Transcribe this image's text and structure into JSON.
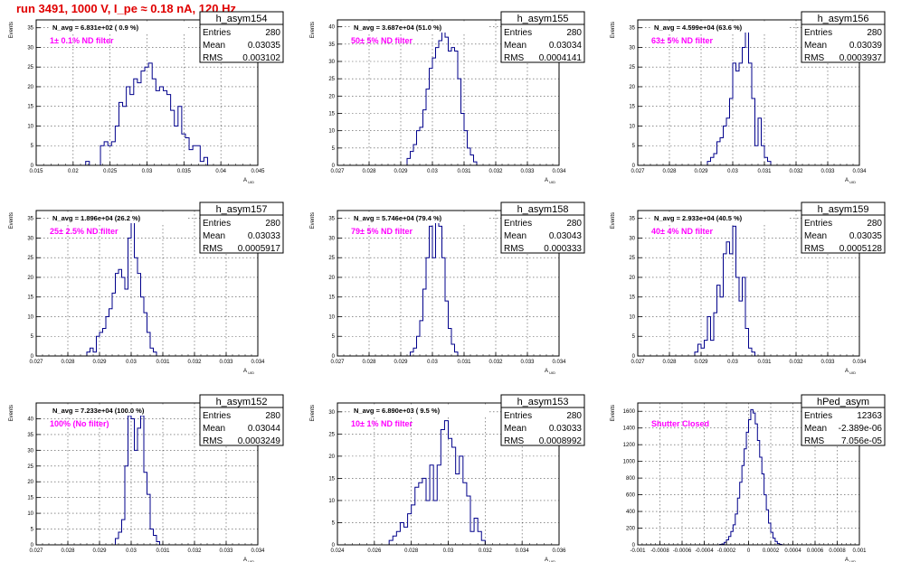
{
  "page": {
    "title": "run 3491,  1000 V, I_pe ≈ 0.18 nA, 120 Hz",
    "colors": {
      "title": "#e00000",
      "histogram": "#00008b",
      "filter_label": "#ff00ff",
      "grid": "#000000",
      "axis": "#000000"
    },
    "stats_labels": {
      "entries": "Entries",
      "mean": "Mean",
      "rms": "RMS"
    },
    "y_axis_label": "Events"
  },
  "chart_data": [
    {
      "type": "bar",
      "name": "h_asym154",
      "navg": "N_avg = 6.831e+02 ( 0.9 %)",
      "filter": "1± 0.1% ND filter",
      "stats": {
        "entries": "280",
        "mean": "0.03035",
        "rms": "0.003102"
      },
      "xlabel": "A_UID",
      "ylabel": "Events",
      "xlim": [
        0.015,
        0.045
      ],
      "ylim": [
        0,
        37
      ],
      "xticks": [
        0.015,
        0.02,
        0.025,
        0.03,
        0.035,
        0.04,
        0.045
      ],
      "xtick_labels": [
        "0.015",
        "0.02",
        "0.025",
        "0.03",
        "0.035",
        "0.04",
        "0.045"
      ],
      "yticks": [
        0,
        5,
        10,
        15,
        20,
        25,
        30,
        35
      ],
      "ytick_labels": [
        "0",
        "5",
        "10",
        "15",
        "20",
        "25",
        "30",
        "35"
      ],
      "bins": {
        "x0": 0.0217,
        "w": 0.0005,
        "values": [
          1,
          0,
          0,
          0,
          5,
          6,
          5,
          6,
          10,
          16,
          15,
          20,
          18,
          22,
          21,
          24,
          25,
          26,
          22,
          19,
          20,
          19,
          18,
          14,
          10,
          15,
          8,
          7,
          4,
          5,
          5,
          1,
          2
        ]
      }
    },
    {
      "type": "bar",
      "name": "h_asym155",
      "navg": "N_avg = 3.687e+04 (51.0 %)",
      "filter": "50± 5% ND filter",
      "stats": {
        "entries": "280",
        "mean": "0.03034",
        "rms": "0.0004141"
      },
      "xlabel": "A_UID",
      "ylabel": "Events",
      "xlim": [
        0.027,
        0.034
      ],
      "ylim": [
        0,
        42
      ],
      "xticks": [
        0.027,
        0.028,
        0.029,
        0.03,
        0.031,
        0.032,
        0.033,
        0.034
      ],
      "xtick_labels": [
        "0.027",
        "0.028",
        "0.029",
        "0.03",
        "0.031",
        "0.032",
        "0.033",
        "0.034"
      ],
      "yticks": [
        0,
        5,
        10,
        15,
        20,
        25,
        30,
        35,
        40
      ],
      "ytick_labels": [
        "0",
        "5",
        "10",
        "15",
        "20",
        "25",
        "30",
        "35",
        "40"
      ],
      "bins": {
        "x0": 0.0292,
        "w": 0.0001,
        "values": [
          2,
          4,
          6,
          10,
          11,
          16,
          22,
          28,
          31,
          34,
          36,
          39,
          37,
          33,
          34,
          33,
          25,
          15,
          10,
          5,
          3,
          1
        ]
      }
    },
    {
      "type": "bar",
      "name": "h_asym156",
      "navg": "N_avg = 4.599e+04 (63.6 %)",
      "filter": "63± 5% ND filter",
      "stats": {
        "entries": "280",
        "mean": "0.03039",
        "rms": "0.0003937"
      },
      "xlabel": "A_UID",
      "ylabel": "Events",
      "xlim": [
        0.027,
        0.034
      ],
      "ylim": [
        0,
        37
      ],
      "xticks": [
        0.027,
        0.028,
        0.029,
        0.03,
        0.031,
        0.032,
        0.033,
        0.034
      ],
      "xtick_labels": [
        "0.027",
        "0.028",
        "0.029",
        "0.03",
        "0.031",
        "0.032",
        "0.033",
        "0.034"
      ],
      "yticks": [
        0,
        5,
        10,
        15,
        20,
        25,
        30,
        35
      ],
      "ytick_labels": [
        "0",
        "5",
        "10",
        "15",
        "20",
        "25",
        "30",
        "35"
      ],
      "bins": {
        "x0": 0.0292,
        "w": 0.0001,
        "values": [
          1,
          2,
          3,
          6,
          7,
          10,
          12,
          17,
          26,
          24,
          26,
          30,
          35,
          26,
          17,
          5,
          12,
          5,
          2,
          1
        ]
      }
    },
    {
      "type": "bar",
      "name": "h_asym157",
      "navg": "N_avg = 1.896e+04 (26.2 %)",
      "filter": "25± 2.5% ND filter",
      "stats": {
        "entries": "280",
        "mean": "0.03033",
        "rms": "0.0005917"
      },
      "xlabel": "A_UID",
      "ylabel": "Events",
      "xlim": [
        0.027,
        0.034
      ],
      "ylim": [
        0,
        37
      ],
      "xticks": [
        0.027,
        0.028,
        0.029,
        0.03,
        0.031,
        0.032,
        0.033,
        0.034
      ],
      "xtick_labels": [
        "0.027",
        "0.028",
        "0.029",
        "0.03",
        "0.031",
        "0.032",
        "0.033",
        "0.034"
      ],
      "yticks": [
        0,
        5,
        10,
        15,
        20,
        25,
        30,
        35
      ],
      "ytick_labels": [
        "0",
        "5",
        "10",
        "15",
        "20",
        "25",
        "30",
        "35"
      ],
      "bins": {
        "x0": 0.0286,
        "w": 0.0001,
        "values": [
          1,
          2,
          1,
          5,
          6,
          7,
          10,
          12,
          16,
          21,
          22,
          20,
          17,
          30,
          36,
          25,
          21,
          15,
          11,
          6,
          2,
          1
        ]
      }
    },
    {
      "type": "bar",
      "name": "h_asym158",
      "navg": "N_avg = 5.746e+04 (79.4 %)",
      "filter": "79± 5% ND filter",
      "stats": {
        "entries": "280",
        "mean": "0.03043",
        "rms": "0.000333"
      },
      "xlabel": "A_UID",
      "ylabel": "Events",
      "xlim": [
        0.027,
        0.034
      ],
      "ylim": [
        0,
        37
      ],
      "xticks": [
        0.027,
        0.028,
        0.029,
        0.03,
        0.031,
        0.032,
        0.033,
        0.034
      ],
      "xtick_labels": [
        "0.027",
        "0.028",
        "0.029",
        "0.03",
        "0.031",
        "0.032",
        "0.033",
        "0.034"
      ],
      "yticks": [
        0,
        5,
        10,
        15,
        20,
        25,
        30,
        35
      ],
      "ytick_labels": [
        "0",
        "5",
        "10",
        "15",
        "20",
        "25",
        "30",
        "35"
      ],
      "bins": {
        "x0": 0.0293,
        "w": 0.0001,
        "values": [
          1,
          2,
          5,
          9,
          17,
          25,
          33,
          25,
          36,
          33,
          25,
          14,
          7,
          3,
          1
        ]
      }
    },
    {
      "type": "bar",
      "name": "h_asym159",
      "navg": "N_avg = 2.933e+04 (40.5 %)",
      "filter": "40± 4% ND filter",
      "stats": {
        "entries": "280",
        "mean": "0.03035",
        "rms": "0.0005128"
      },
      "xlabel": "A_UID",
      "ylabel": "Events",
      "xlim": [
        0.027,
        0.034
      ],
      "ylim": [
        0,
        37
      ],
      "xticks": [
        0.027,
        0.028,
        0.029,
        0.03,
        0.031,
        0.032,
        0.033,
        0.034
      ],
      "xtick_labels": [
        "0.027",
        "0.028",
        "0.029",
        "0.03",
        "0.031",
        "0.032",
        "0.033",
        "0.034"
      ],
      "yticks": [
        0,
        5,
        10,
        15,
        20,
        25,
        30,
        35
      ],
      "ytick_labels": [
        "0",
        "5",
        "10",
        "15",
        "20",
        "25",
        "30",
        "35"
      ],
      "bins": {
        "x0": 0.0288,
        "w": 0.0001,
        "values": [
          1,
          3,
          2,
          4,
          10,
          4,
          11,
          18,
          15,
          26,
          29,
          26,
          33,
          20,
          14,
          20,
          7,
          2,
          1
        ]
      }
    },
    {
      "type": "bar",
      "name": "h_asym152",
      "navg": "N_avg = 7.233e+04 (100.0 %)",
      "filter": "100% (No filter)",
      "stats": {
        "entries": "280",
        "mean": "0.03044",
        "rms": "0.0003249"
      },
      "xlabel": "A_UID",
      "ylabel": "Events",
      "xlim": [
        0.027,
        0.034
      ],
      "ylim": [
        0,
        45
      ],
      "xticks": [
        0.027,
        0.028,
        0.029,
        0.03,
        0.031,
        0.032,
        0.033,
        0.034
      ],
      "xtick_labels": [
        "0.027",
        "0.028",
        "0.029",
        "0.03",
        "0.031",
        "0.032",
        "0.033",
        "0.034"
      ],
      "yticks": [
        0,
        5,
        10,
        15,
        20,
        25,
        30,
        35,
        40
      ],
      "ytick_labels": [
        "0",
        "5",
        "10",
        "15",
        "20",
        "25",
        "30",
        "35",
        "40"
      ],
      "bins": {
        "x0": 0.0295,
        "w": 0.0001,
        "values": [
          2,
          4,
          8,
          25,
          41,
          40,
          30,
          37,
          41,
          23,
          16,
          5,
          3,
          1
        ]
      }
    },
    {
      "type": "bar",
      "name": "h_asym153",
      "navg": "N_avg = 6.890e+03 ( 9.5 %)",
      "filter": "10± 1% ND filter",
      "stats": {
        "entries": "280",
        "mean": "0.03033",
        "rms": "0.0008992"
      },
      "xlabel": "A_UID",
      "ylabel": "Events",
      "xlim": [
        0.024,
        0.036
      ],
      "ylim": [
        0,
        32
      ],
      "xticks": [
        0.024,
        0.026,
        0.028,
        0.03,
        0.032,
        0.034,
        0.036
      ],
      "xtick_labels": [
        "0.024",
        "0.026",
        "0.028",
        "0.03",
        "0.032",
        "0.034",
        "0.036"
      ],
      "yticks": [
        0,
        5,
        10,
        15,
        20,
        25,
        30
      ],
      "ytick_labels": [
        "0",
        "5",
        "10",
        "15",
        "20",
        "25",
        "30"
      ],
      "bins": {
        "x0": 0.0268,
        "w": 0.0002,
        "values": [
          1,
          2,
          3,
          5,
          4,
          7,
          9,
          13,
          14,
          15,
          10,
          18,
          10,
          18,
          26,
          28,
          24,
          22,
          16,
          20,
          14,
          11,
          3,
          6,
          3,
          1
        ]
      }
    },
    {
      "type": "bar",
      "name": "hPed_asym",
      "navg": "",
      "filter": "Shutter Closed",
      "stats": {
        "entries": "12363",
        "mean": "-2.389e-06",
        "rms": "7.056e-05"
      },
      "xlabel": "A_UID",
      "ylabel": "Events",
      "xlim": [
        -0.001,
        0.001
      ],
      "ylim": [
        0,
        1700
      ],
      "xticks": [
        -0.001,
        -0.0008,
        -0.0006,
        -0.0004,
        -0.0002,
        0,
        0.0002,
        0.0004,
        0.0006,
        0.0008,
        0.001
      ],
      "xtick_labels": [
        "-0.001",
        "-0.0008",
        "-0.0006",
        "-0.0004",
        "-0.0002",
        "0",
        "0.0002",
        "0.0004",
        "0.0006",
        "0.0008",
        "0.001"
      ],
      "yticks": [
        0,
        200,
        400,
        600,
        800,
        1000,
        1200,
        1400,
        1600
      ],
      "ytick_labels": [
        "0",
        "200",
        "400",
        "600",
        "800",
        "1000",
        "1200",
        "1400",
        "1600"
      ],
      "bins": {
        "x0": -0.00026,
        "w": 2e-05,
        "values": [
          5,
          10,
          30,
          60,
          100,
          160,
          240,
          370,
          560,
          750,
          950,
          1150,
          1350,
          1500,
          1620,
          1580,
          1450,
          1250,
          1050,
          850,
          600,
          420,
          260,
          150,
          80,
          40,
          15,
          5
        ]
      }
    }
  ]
}
